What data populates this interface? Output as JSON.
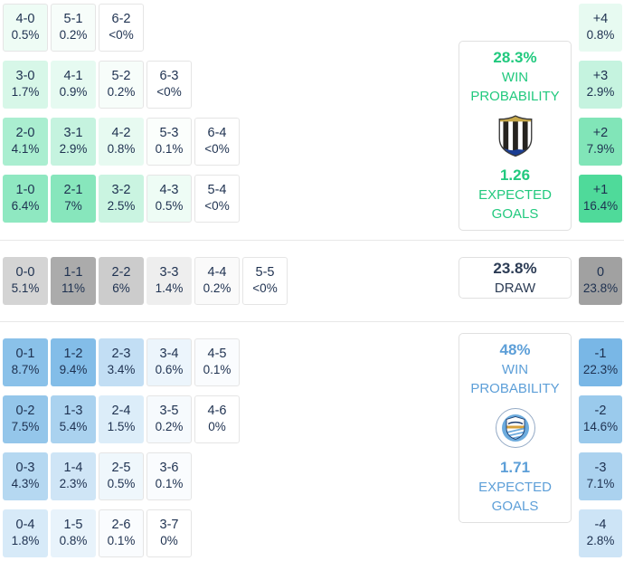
{
  "chart_data": {
    "type": "heatmap",
    "title": "Correct score probability matrix",
    "layout": {
      "grid": "staircase by goal difference",
      "legend": "none",
      "margin_column": "goal difference totals on right"
    },
    "sections": [
      {
        "id": "home-win",
        "outcome": "home_win",
        "badge_icon": "newcastle-united-crest",
        "win_probability": "28.3%",
        "win_label": [
          "WIN",
          "PROBABILITY"
        ],
        "expected_goals": "1.26",
        "eg_label": [
          "EXPECTED",
          "GOALS"
        ],
        "accent": "#21c97e",
        "rows": [
          {
            "goal_diff": "+4",
            "diff_pct": "0.8%",
            "diff_bg": "#e7faf1",
            "cells": [
              {
                "score": "4-0",
                "pct": "0.5%",
                "bg": "#eefcf5"
              },
              {
                "score": "5-1",
                "pct": "0.2%",
                "bg": "#f7fdfa"
              },
              {
                "score": "6-2",
                "pct": "<0%",
                "bg": "#ffffff"
              }
            ]
          },
          {
            "goal_diff": "+3",
            "diff_pct": "2.9%",
            "diff_bg": "#c5f3df",
            "cells": [
              {
                "score": "3-0",
                "pct": "1.7%",
                "bg": "#d7f7e8"
              },
              {
                "score": "4-1",
                "pct": "0.9%",
                "bg": "#e6faf1"
              },
              {
                "score": "5-2",
                "pct": "0.2%",
                "bg": "#f7fdfa"
              },
              {
                "score": "6-3",
                "pct": "<0%",
                "bg": "#ffffff"
              }
            ]
          },
          {
            "goal_diff": "+2",
            "diff_pct": "7.9%",
            "diff_bg": "#81e5b8",
            "cells": [
              {
                "score": "2-0",
                "pct": "4.1%",
                "bg": "#aaeed0"
              },
              {
                "score": "3-1",
                "pct": "2.9%",
                "bg": "#c5f3df"
              },
              {
                "score": "4-2",
                "pct": "0.8%",
                "bg": "#e7faf1"
              },
              {
                "score": "5-3",
                "pct": "0.1%",
                "bg": "#fbfefc"
              },
              {
                "score": "6-4",
                "pct": "<0%",
                "bg": "#ffffff"
              }
            ]
          },
          {
            "goal_diff": "+1",
            "diff_pct": "16.4%",
            "diff_bg": "#4fda9a",
            "cells": [
              {
                "score": "1-0",
                "pct": "6.4%",
                "bg": "#8fe8c1"
              },
              {
                "score": "2-1",
                "pct": "7%",
                "bg": "#87e6bc"
              },
              {
                "score": "3-2",
                "pct": "2.5%",
                "bg": "#caf4e1"
              },
              {
                "score": "4-3",
                "pct": "0.5%",
                "bg": "#eefcf5"
              },
              {
                "score": "5-4",
                "pct": "<0%",
                "bg": "#ffffff"
              }
            ]
          }
        ]
      },
      {
        "id": "draw",
        "outcome": "draw",
        "probability": "23.8%",
        "label": "DRAW",
        "accent": "#2c3c55",
        "rows": [
          {
            "goal_diff": "0",
            "diff_pct": "23.8%",
            "diff_bg": "#a1a1a1",
            "cells": [
              {
                "score": "0-0",
                "pct": "5.1%",
                "bg": "#d4d4d4"
              },
              {
                "score": "1-1",
                "pct": "11%",
                "bg": "#ababab"
              },
              {
                "score": "2-2",
                "pct": "6%",
                "bg": "#cccccc"
              },
              {
                "score": "3-3",
                "pct": "1.4%",
                "bg": "#eeeeee"
              },
              {
                "score": "4-4",
                "pct": "0.2%",
                "bg": "#fafafa"
              },
              {
                "score": "5-5",
                "pct": "<0%",
                "bg": "#ffffff"
              }
            ]
          }
        ]
      },
      {
        "id": "away-win",
        "outcome": "away_win",
        "badge_icon": "manchester-city-crest",
        "win_probability": "48%",
        "win_label": [
          "WIN",
          "PROBABILITY"
        ],
        "expected_goals": "1.71",
        "eg_label": [
          "EXPECTED",
          "GOALS"
        ],
        "accent": "#5d9fd8",
        "rows": [
          {
            "goal_diff": "-1",
            "diff_pct": "22.3%",
            "diff_bg": "#79b7e6",
            "cells": [
              {
                "score": "0-1",
                "pct": "8.7%",
                "bg": "#8ac1e9"
              },
              {
                "score": "1-2",
                "pct": "9.4%",
                "bg": "#83bde8"
              },
              {
                "score": "2-3",
                "pct": "3.4%",
                "bg": "#c2def4"
              },
              {
                "score": "3-4",
                "pct": "0.6%",
                "bg": "#ecf5fc"
              },
              {
                "score": "4-5",
                "pct": "0.1%",
                "bg": "#fafcfe"
              }
            ]
          },
          {
            "goal_diff": "-2",
            "diff_pct": "14.6%",
            "diff_bg": "#9acaec",
            "cells": [
              {
                "score": "0-2",
                "pct": "7.5%",
                "bg": "#94c6ea"
              },
              {
                "score": "1-3",
                "pct": "5.4%",
                "bg": "#aad2ef"
              },
              {
                "score": "2-4",
                "pct": "1.5%",
                "bg": "#dcedf9"
              },
              {
                "score": "3-5",
                "pct": "0.2%",
                "bg": "#f6fafd"
              },
              {
                "score": "4-6",
                "pct": "0%",
                "bg": "#ffffff"
              }
            ]
          },
          {
            "goal_diff": "-3",
            "diff_pct": "7.1%",
            "diff_bg": "#abd2ef",
            "cells": [
              {
                "score": "0-3",
                "pct": "4.3%",
                "bg": "#b5d8f1"
              },
              {
                "score": "1-4",
                "pct": "2.3%",
                "bg": "#cfe5f6"
              },
              {
                "score": "2-5",
                "pct": "0.5%",
                "bg": "#eff7fc"
              },
              {
                "score": "3-6",
                "pct": "0.1%",
                "bg": "#fafcfe"
              }
            ]
          },
          {
            "goal_diff": "-4",
            "diff_pct": "2.8%",
            "diff_bg": "#cde4f6",
            "cells": [
              {
                "score": "0-4",
                "pct": "1.8%",
                "bg": "#d7eaf8"
              },
              {
                "score": "1-5",
                "pct": "0.8%",
                "bg": "#e8f3fb"
              },
              {
                "score": "2-6",
                "pct": "0.1%",
                "bg": "#fafcfe"
              },
              {
                "score": "3-7",
                "pct": "0%",
                "bg": "#ffffff"
              }
            ]
          }
        ]
      }
    ]
  }
}
